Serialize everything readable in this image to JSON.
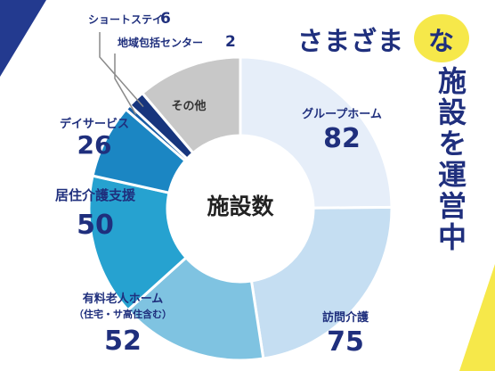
{
  "headline": {
    "line1_main": "さまざま",
    "line1_accent": "な",
    "line2": "施設を運営中"
  },
  "chart_data": {
    "type": "pie",
    "donut": true,
    "center_label": "施設数",
    "categories": [
      "グループホーム",
      "訪問介護",
      "有料老人ホーム（住宅・サ高住含む）",
      "居住介護支援",
      "デイサービス",
      "地域包括センター",
      "ショートステイ",
      "その他"
    ],
    "values": [
      82,
      75,
      52,
      50,
      26,
      2,
      6,
      37
    ],
    "label_lines": [
      [
        "グループホーム"
      ],
      [
        "訪問介護"
      ],
      [
        "有料老人ホーム",
        "（住宅・サ高住含む）"
      ],
      [
        "居住介護支援"
      ],
      [
        "デイサービス"
      ],
      [
        "地域包括センター"
      ],
      [
        "ショートステイ"
      ],
      [
        "その他"
      ]
    ],
    "value_labels": [
      "82",
      "75",
      "52",
      "50",
      "26",
      "2",
      "6",
      ""
    ],
    "colors": [
      "#e6eef9",
      "#c5def2",
      "#7fc3e1",
      "#26a2d0",
      "#1b86c3",
      "#1a5ca4",
      "#17357d",
      "#c8c8c8"
    ]
  }
}
